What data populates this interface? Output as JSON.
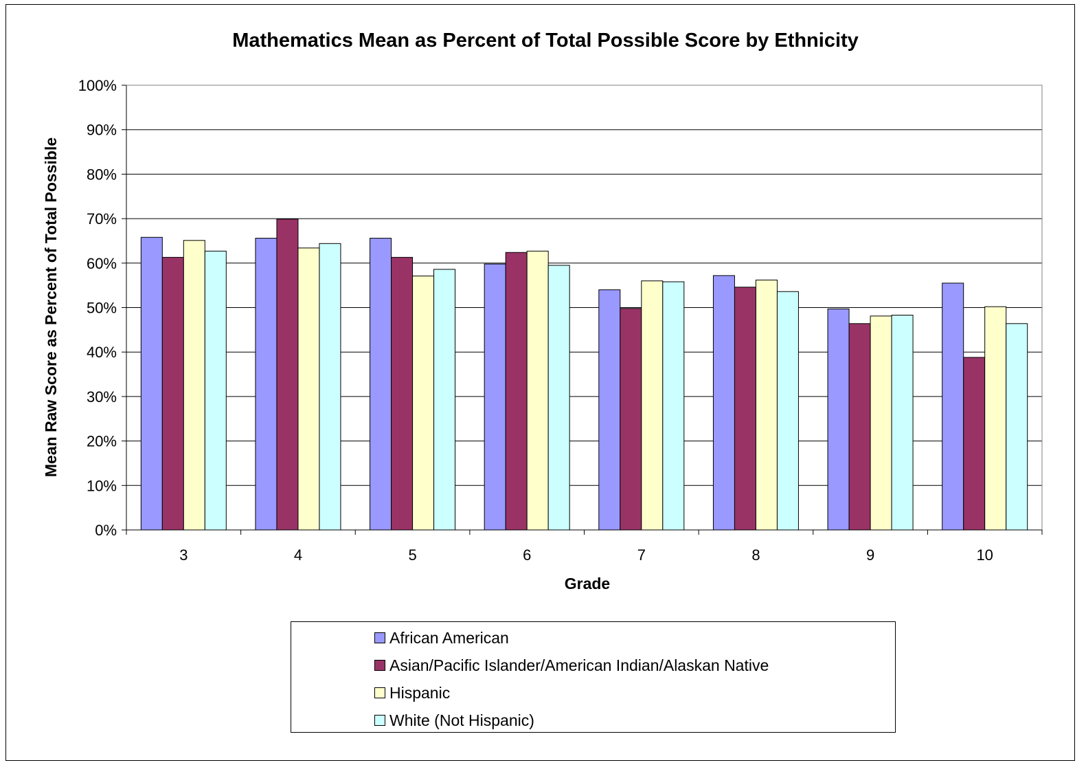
{
  "chart_data": {
    "type": "bar",
    "title": "Mathematics Mean as Percent of Total Possible Score by Ethnicity",
    "xlabel": "Grade",
    "ylabel": "Mean Raw Score as Percent of Total Possible",
    "categories": [
      "3",
      "4",
      "5",
      "6",
      "7",
      "8",
      "9",
      "10"
    ],
    "y_ticks": [
      "0%",
      "10%",
      "20%",
      "30%",
      "40%",
      "50%",
      "60%",
      "70%",
      "80%",
      "90%",
      "100%"
    ],
    "ylim": [
      0,
      100
    ],
    "grid": true,
    "legend_position": "bottom",
    "series": [
      {
        "name": "African American",
        "color": "#9999ff",
        "values": [
          65.8,
          65.6,
          65.6,
          59.8,
          54.0,
          57.2,
          49.7,
          55.5
        ]
      },
      {
        "name": "Asian/Pacific Islander/American Indian/Alaskan Native",
        "color": "#993366",
        "values": [
          61.3,
          69.9,
          61.3,
          62.4,
          49.8,
          54.6,
          46.4,
          38.8
        ]
      },
      {
        "name": "Hispanic",
        "color": "#ffffcc",
        "values": [
          65.1,
          63.4,
          57.1,
          62.7,
          56.0,
          56.2,
          48.1,
          50.2
        ]
      },
      {
        "name": "White (Not Hispanic)",
        "color": "#ccffff",
        "values": [
          62.7,
          64.4,
          58.6,
          59.5,
          55.8,
          53.6,
          48.3,
          46.4
        ]
      }
    ]
  }
}
